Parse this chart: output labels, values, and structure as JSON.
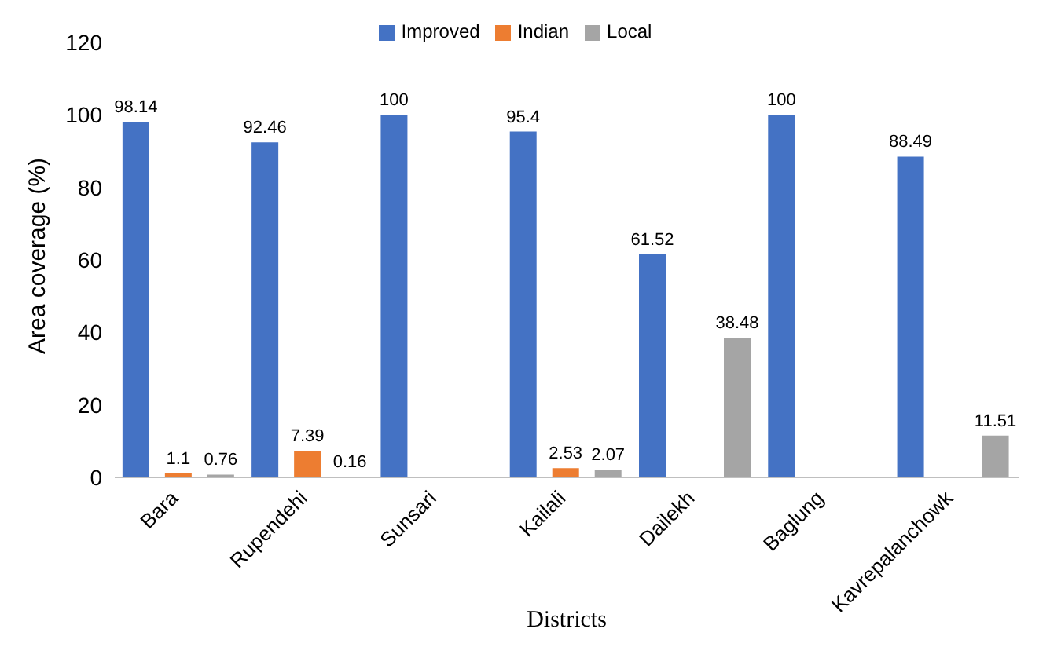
{
  "chart_data": {
    "type": "bar",
    "xlabel": "Districts",
    "ylabel": "Area coverage (%)",
    "categories": [
      "Bara",
      "Rupendehi",
      "Sunsari",
      "Kailali",
      "Dailekh",
      "Baglung",
      "Kavrepalanchowk"
    ],
    "series": [
      {
        "name": "Improved",
        "color": "#4472c4",
        "values": [
          98.14,
          92.46,
          100,
          95.4,
          61.52,
          100,
          88.49
        ]
      },
      {
        "name": "Indian",
        "color": "#ed7d31",
        "values": [
          1.1,
          7.39,
          null,
          2.53,
          null,
          null,
          null
        ]
      },
      {
        "name": "Local",
        "color": "#a5a5a5",
        "values": [
          0.76,
          0.16,
          null,
          2.07,
          38.48,
          null,
          11.51
        ]
      }
    ],
    "ylim": [
      0,
      120
    ],
    "yticks": [
      0,
      20,
      40,
      60,
      80,
      100,
      120
    ],
    "grid": false,
    "legend": "top",
    "data_labels": true
  }
}
